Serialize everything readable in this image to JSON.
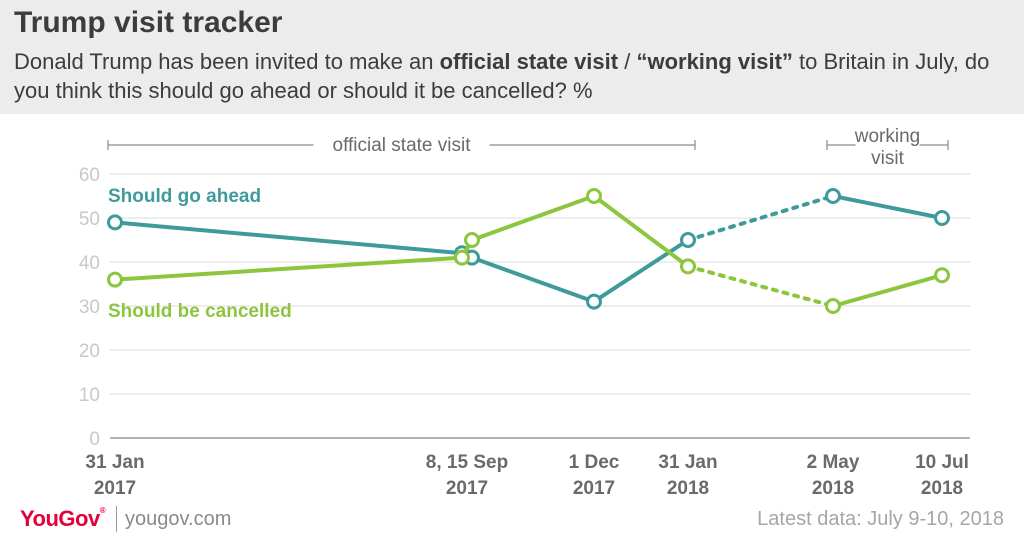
{
  "header": {
    "title": "Trump visit tracker",
    "subtitle_parts": [
      "Donald Trump has been invited to make an ",
      "official state visit",
      " / ",
      "“working visit”",
      " to Britain in July, do you think this should go ahead or should it be cancelled? %"
    ]
  },
  "chart_data": {
    "type": "line",
    "categories": [
      "31 Jan 2017",
      "8, 15 Sep 2017",
      "1 Dec 2017",
      "31 Jan 2018",
      "2 May 2018",
      "10 Jul 2018"
    ],
    "x_tick_labels": [
      [
        "31 Jan",
        "2017"
      ],
      [
        "8, 15 Sep",
        "2017"
      ],
      [
        "1 Dec",
        "2017"
      ],
      [
        "31 Jan",
        "2018"
      ],
      [
        "2 May",
        "2018"
      ],
      [
        "10 Jul",
        "2018"
      ]
    ],
    "ylim": [
      0,
      60
    ],
    "yticks": [
      0,
      10,
      20,
      30,
      40,
      50,
      60
    ],
    "grid": true,
    "series": [
      {
        "name": "Should go ahead",
        "color": "#3f9a9c",
        "points": [
          {
            "date": "2017-01-31",
            "value": 49
          },
          {
            "date": "2017-09-08",
            "value": 42
          },
          {
            "date": "2017-09-15",
            "value": 41
          },
          {
            "date": "2017-12-01",
            "value": 31
          },
          {
            "date": "2018-01-31",
            "value": 45
          },
          {
            "date": "2018-05-02",
            "value": 55
          },
          {
            "date": "2018-07-10",
            "value": 50
          }
        ]
      },
      {
        "name": "Should be cancelled",
        "color": "#8cc63f",
        "points": [
          {
            "date": "2017-01-31",
            "value": 36
          },
          {
            "date": "2017-09-08",
            "value": 41
          },
          {
            "date": "2017-09-15",
            "value": 45
          },
          {
            "date": "2017-12-01",
            "value": 55
          },
          {
            "date": "2018-01-31",
            "value": 39
          },
          {
            "date": "2018-05-02",
            "value": 30
          },
          {
            "date": "2018-07-10",
            "value": 37
          }
        ]
      }
    ],
    "dotted_segment": {
      "from": "2018-01-31",
      "to": "2018-05-02"
    },
    "periods": [
      {
        "label": "official state visit",
        "from": "2017-01-31",
        "to": "2018-01-31"
      },
      {
        "label_lines": [
          "working",
          "visit"
        ],
        "from": "2018-05-02",
        "to": "2018-07-10"
      }
    ],
    "tick_color": "#c8c8c8",
    "label_color": "#5a5a5a"
  },
  "footer": {
    "logo": "YouGov",
    "url": "yougov.com",
    "note": "Latest data: July 9-10, 2018"
  }
}
